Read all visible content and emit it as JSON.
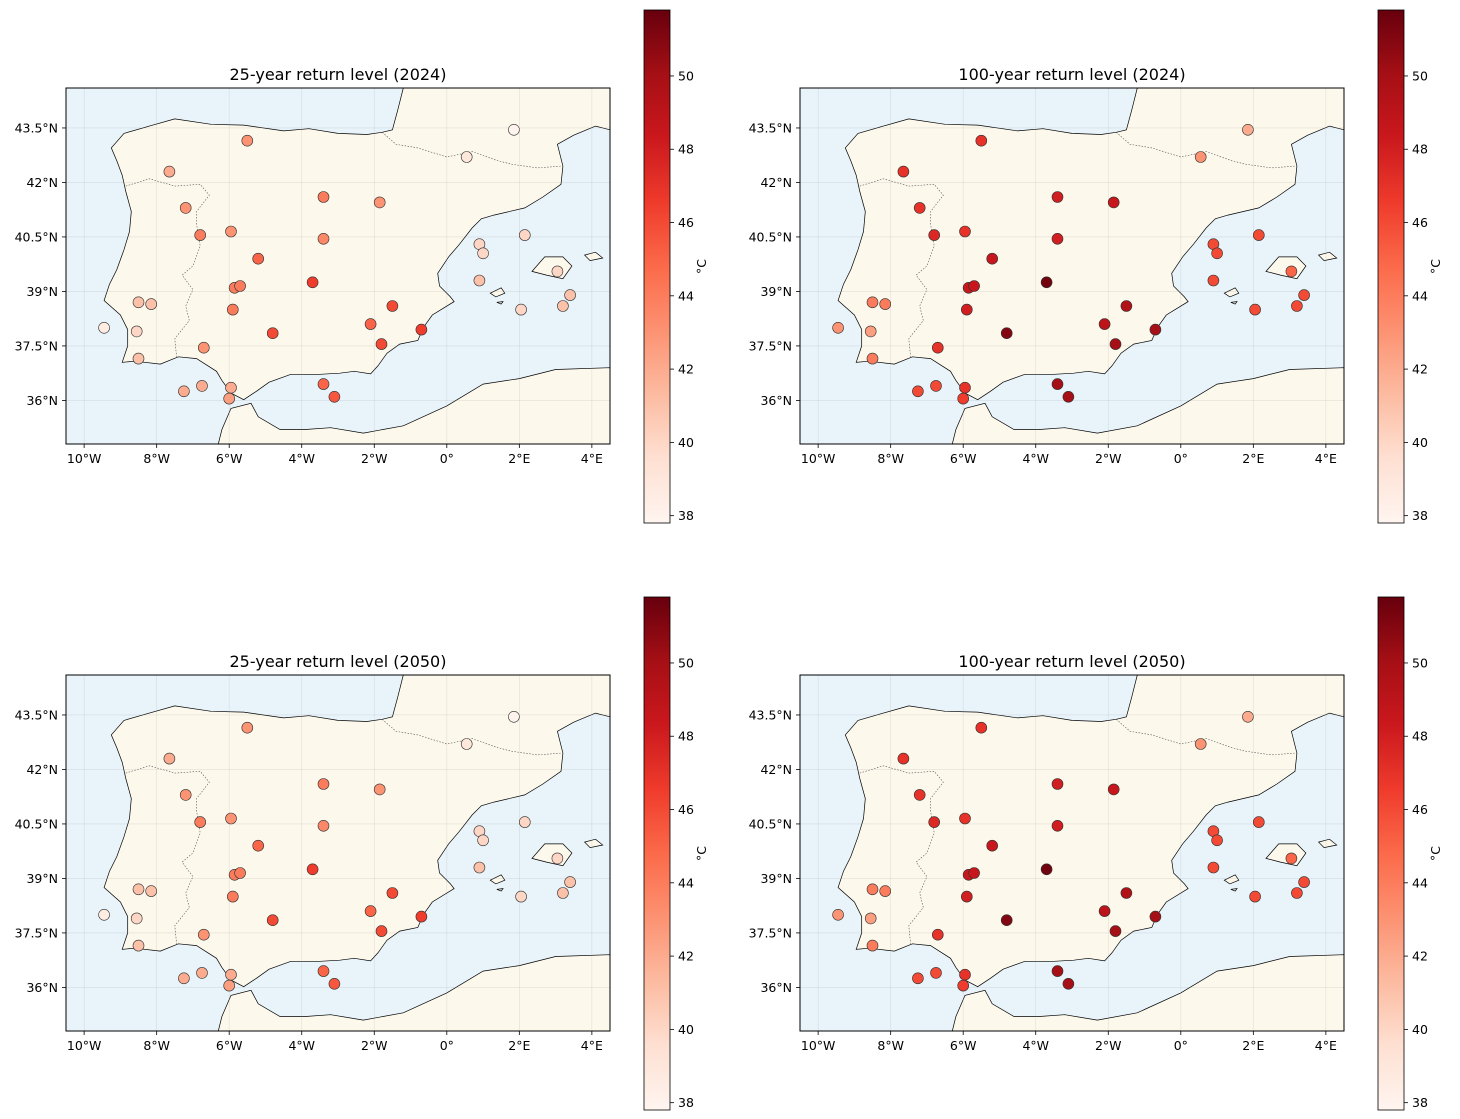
{
  "colorbar": {
    "label": "°C",
    "min": 37.8,
    "max": 51.8,
    "ticks": [
      38,
      40,
      42,
      44,
      46,
      48,
      50
    ],
    "colormap": [
      "#fff5f0",
      "#fee0d2",
      "#fcbba1",
      "#fc9272",
      "#fb6a4a",
      "#ef3b2c",
      "#cb181d",
      "#a50f15",
      "#67000d"
    ]
  },
  "map_style": {
    "land_color": "#fcf8ec",
    "ocean_color": "#e8f3fa",
    "coast_color": "#000000",
    "grid": true
  },
  "axes": {
    "lon_range": [
      -10.5,
      4.5
    ],
    "lat_range": [
      34.8,
      44.6
    ],
    "lon_ticks": [
      {
        "v": -10,
        "label": "10°W"
      },
      {
        "v": -8,
        "label": "8°W"
      },
      {
        "v": -6,
        "label": "6°W"
      },
      {
        "v": -4,
        "label": "4°W"
      },
      {
        "v": -2,
        "label": "2°W"
      },
      {
        "v": 0,
        "label": "0°"
      },
      {
        "v": 2,
        "label": "2°E"
      },
      {
        "v": 4,
        "label": "4°E"
      }
    ],
    "lat_ticks": [
      {
        "v": 36,
        "label": "36°N"
      },
      {
        "v": 37.5,
        "label": "37.5°N"
      },
      {
        "v": 39,
        "label": "39°N"
      },
      {
        "v": 40.5,
        "label": "40.5°N"
      },
      {
        "v": 42,
        "label": "42°N"
      },
      {
        "v": 43.5,
        "label": "43.5°N"
      }
    ]
  },
  "stations": [
    {
      "lon": -9.45,
      "lat": 38.0,
      "rl25": 38.5,
      "rl100": 43.0
    },
    {
      "lon": -8.5,
      "lat": 38.7,
      "rl25": 41.0,
      "rl100": 44.0
    },
    {
      "lon": -8.15,
      "lat": 38.65,
      "rl25": 41.0,
      "rl100": 44.0
    },
    {
      "lon": -8.55,
      "lat": 37.9,
      "rl25": 40.0,
      "rl100": 42.5
    },
    {
      "lon": -8.5,
      "lat": 37.15,
      "rl25": 41.0,
      "rl100": 44.0
    },
    {
      "lon": -7.65,
      "lat": 42.3,
      "rl25": 42.0,
      "rl100": 47.0
    },
    {
      "lon": -7.2,
      "lat": 41.3,
      "rl25": 43.0,
      "rl100": 47.0
    },
    {
      "lon": -6.8,
      "lat": 40.55,
      "rl25": 44.0,
      "rl100": 47.5
    },
    {
      "lon": -5.5,
      "lat": 43.15,
      "rl25": 43.0,
      "rl100": 47.0
    },
    {
      "lon": -5.95,
      "lat": 40.65,
      "rl25": 43.0,
      "rl100": 47.0
    },
    {
      "lon": -5.2,
      "lat": 39.9,
      "rl25": 45.0,
      "rl100": 48.5
    },
    {
      "lon": -5.85,
      "lat": 39.1,
      "rl25": 44.0,
      "rl100": 48.5
    },
    {
      "lon": -5.7,
      "lat": 39.15,
      "rl25": 44.0,
      "rl100": 48.5
    },
    {
      "lon": -5.9,
      "lat": 38.5,
      "rl25": 44.0,
      "rl100": 48.0
    },
    {
      "lon": -6.7,
      "lat": 37.45,
      "rl25": 43.0,
      "rl100": 47.0
    },
    {
      "lon": -4.8,
      "lat": 37.85,
      "rl25": 46.0,
      "rl100": 51.0
    },
    {
      "lon": -7.25,
      "lat": 36.25,
      "rl25": 42.0,
      "rl100": 46.0
    },
    {
      "lon": -6.75,
      "lat": 36.4,
      "rl25": 42.0,
      "rl100": 46.0
    },
    {
      "lon": -5.95,
      "lat": 36.35,
      "rl25": 42.0,
      "rl100": 47.0
    },
    {
      "lon": -6.0,
      "lat": 36.05,
      "rl25": 42.5,
      "rl100": 46.5
    },
    {
      "lon": -3.4,
      "lat": 41.6,
      "rl25": 44.0,
      "rl100": 48.0
    },
    {
      "lon": -1.85,
      "lat": 41.45,
      "rl25": 43.0,
      "rl100": 48.5
    },
    {
      "lon": -3.4,
      "lat": 40.45,
      "rl25": 43.5,
      "rl100": 48.0
    },
    {
      "lon": -3.7,
      "lat": 39.25,
      "rl25": 46.5,
      "rl100": 51.5
    },
    {
      "lon": -2.1,
      "lat": 38.1,
      "rl25": 45.0,
      "rl100": 49.0
    },
    {
      "lon": -1.5,
      "lat": 38.6,
      "rl25": 46.0,
      "rl100": 49.5
    },
    {
      "lon": -1.8,
      "lat": 37.55,
      "rl25": 46.0,
      "rl100": 50.0
    },
    {
      "lon": -0.7,
      "lat": 37.95,
      "rl25": 46.5,
      "rl100": 50.0
    },
    {
      "lon": -3.4,
      "lat": 36.45,
      "rl25": 45.0,
      "rl100": 50.0
    },
    {
      "lon": -3.1,
      "lat": 36.1,
      "rl25": 45.5,
      "rl100": 50.0
    },
    {
      "lon": 0.55,
      "lat": 42.7,
      "rl25": 39.0,
      "rl100": 43.0
    },
    {
      "lon": 1.85,
      "lat": 43.45,
      "rl25": 38.0,
      "rl100": 42.0
    },
    {
      "lon": 0.9,
      "lat": 40.3,
      "rl25": 40.0,
      "rl100": 46.0
    },
    {
      "lon": 1.0,
      "lat": 40.05,
      "rl25": 40.0,
      "rl100": 46.0
    },
    {
      "lon": 0.9,
      "lat": 39.3,
      "rl25": 41.0,
      "rl100": 46.0
    },
    {
      "lon": 2.15,
      "lat": 40.55,
      "rl25": 40.0,
      "rl100": 46.0
    },
    {
      "lon": 2.05,
      "lat": 38.5,
      "rl25": 40.0,
      "rl100": 46.0
    },
    {
      "lon": 3.05,
      "lat": 39.55,
      "rl25": 40.0,
      "rl100": 45.0
    },
    {
      "lon": 3.2,
      "lat": 38.6,
      "rl25": 41.0,
      "rl100": 46.0
    },
    {
      "lon": 3.4,
      "lat": 38.9,
      "rl25": 41.0,
      "rl100": 46.0
    }
  ],
  "panels": [
    {
      "title": "25-year return level (2024)",
      "field": "rl25"
    },
    {
      "title": "100-year return level (2024)",
      "field": "rl100"
    },
    {
      "title": "25-year return level (2050)",
      "field": "rl25"
    },
    {
      "title": "100-year return level (2050)",
      "field": "rl100"
    }
  ]
}
